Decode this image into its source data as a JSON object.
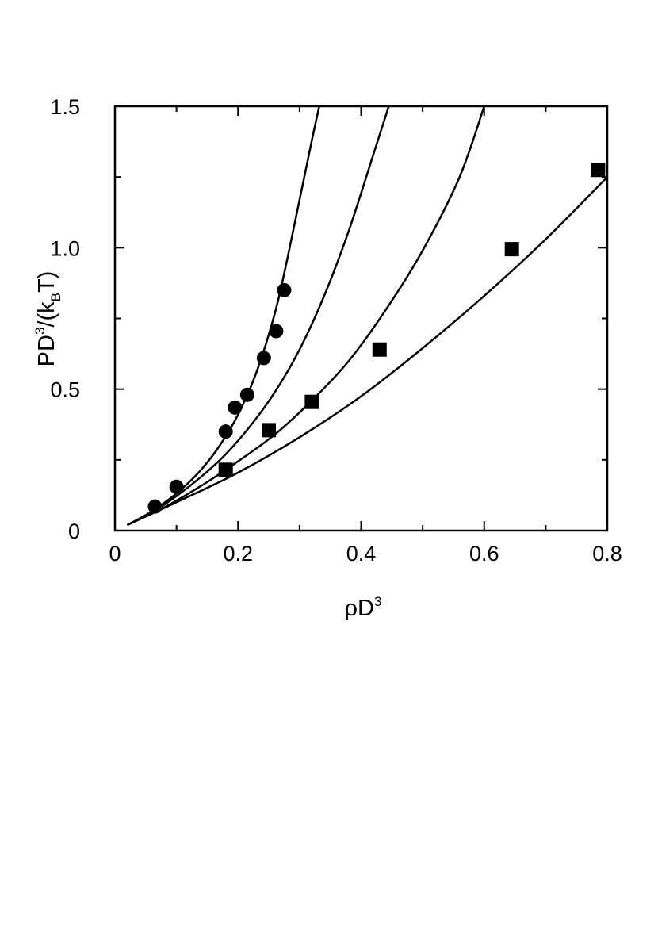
{
  "chart_data": {
    "type": "scatter",
    "xlabel": {
      "base": "ρD",
      "sup": "3"
    },
    "ylabel": {
      "p1": "PD",
      "sup": "3",
      "p2": "/(k",
      "sub": "B",
      "p3": "T)"
    },
    "xlim": [
      0,
      0.8
    ],
    "ylim": [
      0,
      1.5
    ],
    "x_ticks": [
      {
        "value": 0,
        "label": "0"
      },
      {
        "value": 0.2,
        "label": "0.2"
      },
      {
        "value": 0.4,
        "label": "0.4"
      },
      {
        "value": 0.6,
        "label": "0.6"
      },
      {
        "value": 0.8,
        "label": "0.8"
      }
    ],
    "y_ticks": [
      {
        "value": 0,
        "label": "0"
      },
      {
        "value": 0.5,
        "label": "0.5"
      },
      {
        "value": 1.0,
        "label": "1.0"
      },
      {
        "value": 1.5,
        "label": "1.5"
      }
    ],
    "x_minor_ticks": [
      0.1,
      0.3,
      0.5,
      0.7
    ],
    "y_minor_ticks": [
      0.25,
      0.75,
      1.25
    ],
    "grid": false,
    "curves": [
      {
        "points": [
          [
            0.02,
            0.02
          ],
          [
            0.05,
            0.055
          ],
          [
            0.08,
            0.098
          ],
          [
            0.11,
            0.15
          ],
          [
            0.14,
            0.215
          ],
          [
            0.17,
            0.3
          ],
          [
            0.2,
            0.41
          ],
          [
            0.23,
            0.56
          ],
          [
            0.26,
            0.77
          ],
          [
            0.28,
            0.96
          ],
          [
            0.3,
            1.17
          ],
          [
            0.32,
            1.38
          ],
          [
            0.332,
            1.5
          ]
        ]
      },
      {
        "points": [
          [
            0.02,
            0.02
          ],
          [
            0.06,
            0.064
          ],
          [
            0.1,
            0.122
          ],
          [
            0.14,
            0.19
          ],
          [
            0.18,
            0.27
          ],
          [
            0.22,
            0.37
          ],
          [
            0.26,
            0.49
          ],
          [
            0.3,
            0.64
          ],
          [
            0.34,
            0.83
          ],
          [
            0.38,
            1.06
          ],
          [
            0.42,
            1.33
          ],
          [
            0.445,
            1.5
          ]
        ]
      },
      {
        "points": [
          [
            0.02,
            0.02
          ],
          [
            0.08,
            0.082
          ],
          [
            0.14,
            0.158
          ],
          [
            0.2,
            0.245
          ],
          [
            0.26,
            0.34
          ],
          [
            0.32,
            0.46
          ],
          [
            0.38,
            0.6
          ],
          [
            0.44,
            0.78
          ],
          [
            0.5,
            0.99
          ],
          [
            0.56,
            1.25
          ],
          [
            0.6,
            1.5
          ]
        ]
      },
      {
        "points": [
          [
            0.02,
            0.02
          ],
          [
            0.1,
            0.1
          ],
          [
            0.2,
            0.205
          ],
          [
            0.3,
            0.33
          ],
          [
            0.4,
            0.475
          ],
          [
            0.5,
            0.645
          ],
          [
            0.6,
            0.83
          ],
          [
            0.7,
            1.03
          ],
          [
            0.8,
            1.25
          ]
        ]
      }
    ],
    "series": [
      {
        "marker": "circle",
        "points": [
          [
            0.065,
            0.085
          ],
          [
            0.1,
            0.155
          ],
          [
            0.18,
            0.35
          ],
          [
            0.195,
            0.435
          ],
          [
            0.215,
            0.48
          ],
          [
            0.242,
            0.61
          ],
          [
            0.262,
            0.705
          ],
          [
            0.275,
            0.85
          ]
        ]
      },
      {
        "marker": "square",
        "points": [
          [
            0.18,
            0.215
          ],
          [
            0.25,
            0.355
          ],
          [
            0.32,
            0.455
          ],
          [
            0.43,
            0.64
          ],
          [
            0.645,
            0.995
          ],
          [
            0.785,
            1.275
          ]
        ]
      }
    ]
  }
}
